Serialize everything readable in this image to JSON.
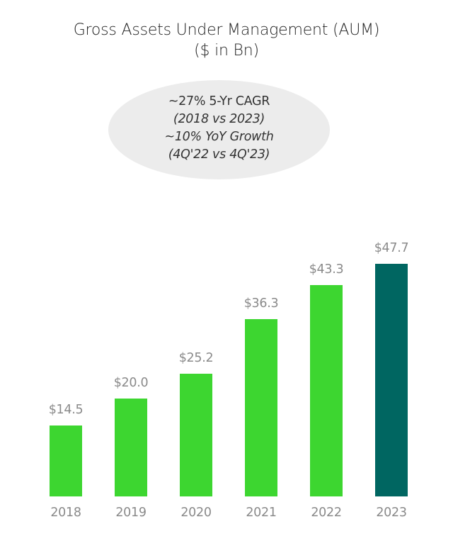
{
  "header": {
    "title_line1": "Gross Assets Under Management (AUM)",
    "title_line2": "($ in Bn)"
  },
  "callout": {
    "line1": "~27% 5-Yr CAGR",
    "line2": "(2018 vs 2023)",
    "line3": "~10% YoY Growth",
    "line4": "(4Q'22 vs 4Q'23)"
  },
  "colors": {
    "bar_primary": "#3dd630",
    "bar_highlight": "#006661",
    "callout_bg": "#ececec"
  },
  "bars": [
    {
      "year": "2018",
      "label": "$14.5",
      "value": 14.5
    },
    {
      "year": "2019",
      "label": "$20.0",
      "value": 20.0
    },
    {
      "year": "2020",
      "label": "$25.2",
      "value": 25.2
    },
    {
      "year": "2021",
      "label": "$36.3",
      "value": 36.3
    },
    {
      "year": "2022",
      "label": "$43.3",
      "value": 43.3
    },
    {
      "year": "2023",
      "label": "$47.7",
      "value": 47.7
    }
  ],
  "chart_data": {
    "type": "bar",
    "title": "Gross Assets Under Management (AUM) ($ in Bn)",
    "categories": [
      "2018",
      "2019",
      "2020",
      "2021",
      "2022",
      "2023"
    ],
    "values": [
      14.5,
      20.0,
      25.2,
      36.3,
      43.3,
      47.7
    ],
    "data_labels": [
      "$14.5",
      "$20.0",
      "$25.2",
      "$36.3",
      "$43.3",
      "$47.7"
    ],
    "xlabel": "",
    "ylabel": "",
    "grid": false,
    "legend": null,
    "annotations": [
      "~27% 5-Yr CAGR (2018 vs 2023)",
      "~10% YoY Growth (4Q'22 vs 4Q'23)"
    ],
    "highlight": "2023"
  }
}
